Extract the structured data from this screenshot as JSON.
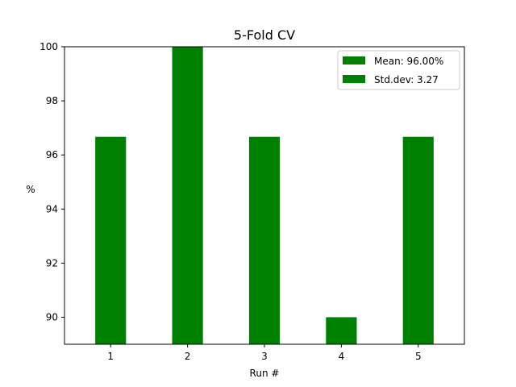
{
  "chart_data": {
    "type": "bar",
    "title": "5-Fold CV",
    "xlabel": "Run #",
    "ylabel": "%",
    "categories": [
      "1",
      "2",
      "3",
      "4",
      "5"
    ],
    "values": [
      96.67,
      100.0,
      96.67,
      90.0,
      96.67
    ],
    "ylim": [
      89,
      100
    ],
    "yticks": [
      90,
      92,
      94,
      96,
      98,
      100
    ],
    "bar_color": "#008000",
    "grid": false,
    "legend": {
      "placement": "top-right",
      "entries": [
        "Mean: 96.00%",
        "Std.dev: 3.27"
      ]
    }
  }
}
